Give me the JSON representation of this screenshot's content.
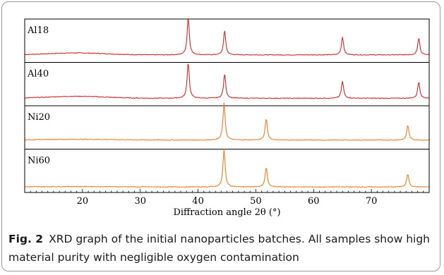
{
  "chart_data": {
    "type": "line",
    "xlabel": "Diffraction angle 2θ (°)",
    "xlim": [
      10,
      80
    ],
    "xticks": [
      20,
      30,
      40,
      50,
      60,
      70
    ],
    "panels": [
      {
        "name": "Al18",
        "color": "#d62728",
        "baseline_level": 0.12,
        "hump": {
          "center": 19,
          "width": 7,
          "height": 0.05
        },
        "peaks": [
          {
            "x": 38.3,
            "height": 0.96
          },
          {
            "x": 44.6,
            "height": 0.62
          },
          {
            "x": 65.0,
            "height": 0.46
          },
          {
            "x": 78.2,
            "height": 0.44
          }
        ]
      },
      {
        "name": "Al40",
        "color": "#d62728",
        "baseline_level": 0.12,
        "hump": {
          "center": 19,
          "width": 7,
          "height": 0.05
        },
        "peaks": [
          {
            "x": 38.3,
            "height": 0.92
          },
          {
            "x": 44.6,
            "height": 0.62
          },
          {
            "x": 65.0,
            "height": 0.44
          },
          {
            "x": 78.2,
            "height": 0.42
          }
        ]
      },
      {
        "name": "Ni20",
        "color": "#ee7d23",
        "baseline_level": 0.16,
        "hump": {
          "center": 19,
          "width": 9,
          "height": 0.02
        },
        "peaks": [
          {
            "x": 44.5,
            "height": 0.95
          },
          {
            "x": 51.8,
            "height": 0.55
          },
          {
            "x": 76.3,
            "height": 0.38
          }
        ]
      },
      {
        "name": "Ni60",
        "color": "#ee7d23",
        "baseline_level": 0.07,
        "hump": {
          "center": 19,
          "width": 9,
          "height": 0.01
        },
        "peaks": [
          {
            "x": 44.5,
            "height": 0.97
          },
          {
            "x": 51.8,
            "height": 0.5
          },
          {
            "x": 76.3,
            "height": 0.33
          }
        ]
      }
    ]
  },
  "caption": {
    "label": "Fig. 2",
    "text": "XRD graph of the initial nanoparticles batches. All samples show high material purity with negligible oxygen contamination"
  }
}
